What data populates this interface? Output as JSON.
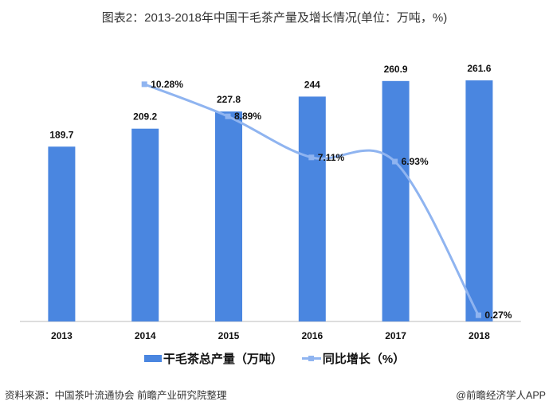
{
  "title": "图表2：2013-2018年中国干毛茶产量及增长情况(单位：万吨，%)",
  "source": "资料来源：中国茶叶流通协会 前瞻产业研究院整理",
  "credit": "@前瞻经济学人APP",
  "chart_data": {
    "type": "bar+line",
    "categories": [
      "2013",
      "2014",
      "2015",
      "2016",
      "2017",
      "2018"
    ],
    "series": [
      {
        "name": "干毛茶总产量（万吨）",
        "type": "bar",
        "color": "#4a86e0",
        "values": [
          189.7,
          209.2,
          227.8,
          244,
          260.9,
          261.6
        ],
        "labels": [
          "189.7",
          "209.2",
          "227.8",
          "244",
          "260.9",
          "261.6"
        ]
      },
      {
        "name": "同比增长（%）",
        "type": "line",
        "color": "#8fb4f0",
        "axis": "secondary",
        "values": [
          null,
          10.28,
          8.89,
          7.11,
          6.93,
          0.27
        ],
        "labels": [
          "",
          "10.28%",
          "8.89%",
          "7.11%",
          "6.93%",
          "0.27%"
        ]
      }
    ],
    "ylim": [
      0,
      261.6
    ],
    "y2lim": [
      0,
      13.9
    ],
    "grid": false,
    "legend_position": "bottom"
  }
}
